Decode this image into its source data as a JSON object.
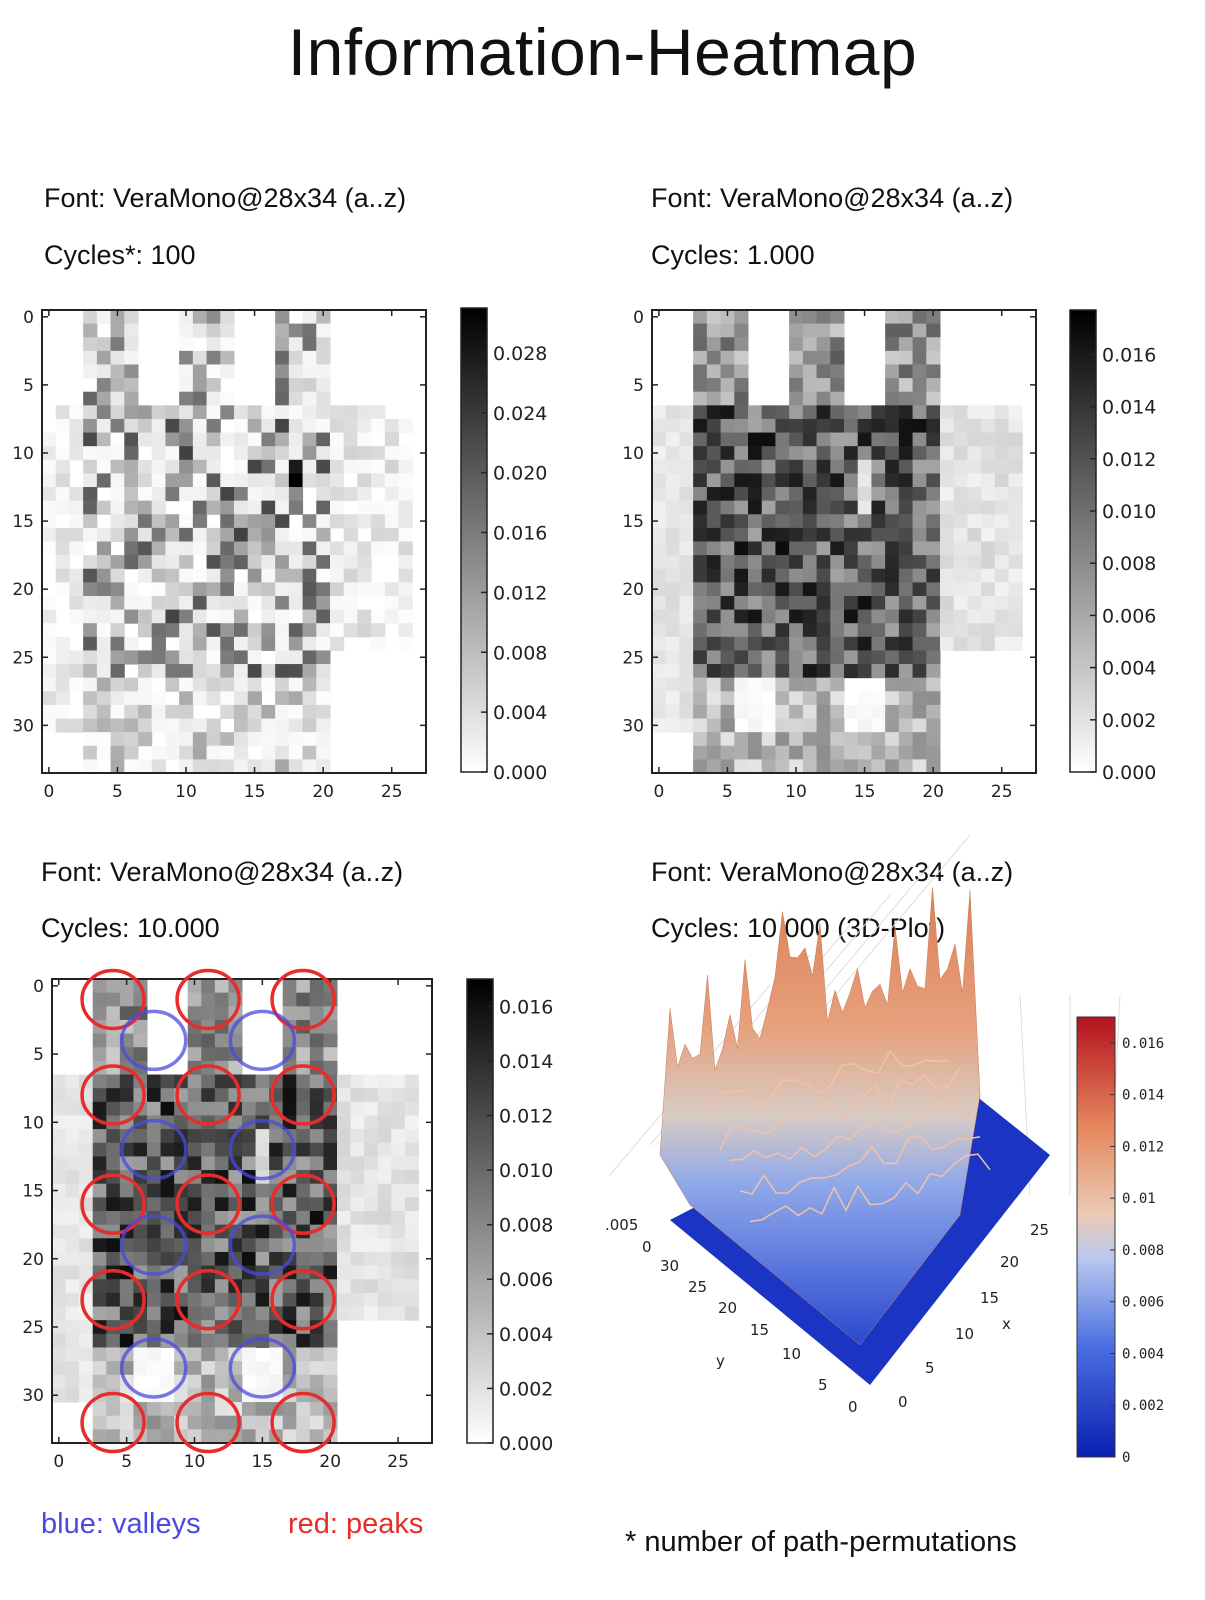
{
  "title": "Information-Heatmap",
  "panels": [
    {
      "font_label": "Font: VeraMono@28x34 (a..z)",
      "cycles_label": "Cycles*: 100"
    },
    {
      "font_label": "Font: VeraMono@28x34 (a..z)",
      "cycles_label": "Cycles: 1.000"
    },
    {
      "font_label": "Font: VeraMono@28x34 (a..z)",
      "cycles_label": "Cycles: 10.000"
    },
    {
      "font_label": "Font: VeraMono@28x34 (a..z)",
      "cycles_label": "Cycles: 10.000 (3D-Plot)"
    }
  ],
  "legend": {
    "blue": "blue: valleys",
    "red": "red: peaks",
    "blue_color": "#4a4ae0",
    "red_color": "#e82b2b"
  },
  "footnote": "* number of path-permutations",
  "chart_data": [
    {
      "type": "heatmap",
      "title": "",
      "grid": {
        "cols": 28,
        "rows": 34
      },
      "xticks": [
        "0",
        "5",
        "10",
        "15",
        "20",
        "25"
      ],
      "yticks": [
        "0",
        "5",
        "10",
        "15",
        "20",
        "25",
        "30"
      ],
      "colorbar": {
        "min": 0.0,
        "max": 0.031,
        "ticks": [
          "0.000",
          "0.004",
          "0.008",
          "0.012",
          "0.016",
          "0.020",
          "0.024",
          "0.028"
        ],
        "colormap": "gray_r"
      },
      "description_values": "sparse noisy glyph-shaped intensity, peak near x=18,y=12"
    },
    {
      "type": "heatmap",
      "title": "",
      "grid": {
        "cols": 28,
        "rows": 34
      },
      "xticks": [
        "0",
        "5",
        "10",
        "15",
        "20",
        "25"
      ],
      "yticks": [
        "0",
        "5",
        "10",
        "15",
        "20",
        "25",
        "30"
      ],
      "colorbar": {
        "min": 0.0,
        "max": 0.0177,
        "ticks": [
          "0.000",
          "0.002",
          "0.004",
          "0.006",
          "0.008",
          "0.010",
          "0.012",
          "0.014",
          "0.016"
        ],
        "colormap": "gray_r"
      }
    },
    {
      "type": "heatmap",
      "title": "",
      "grid": {
        "cols": 28,
        "rows": 34
      },
      "xticks": [
        "0",
        "5",
        "10",
        "15",
        "20",
        "25"
      ],
      "yticks": [
        "0",
        "5",
        "10",
        "15",
        "20",
        "25",
        "30"
      ],
      "colorbar": {
        "min": 0.0,
        "max": 0.017,
        "ticks": [
          "0.000",
          "0.002",
          "0.004",
          "0.006",
          "0.008",
          "0.010",
          "0.012",
          "0.014",
          "0.016"
        ],
        "colormap": "gray_r"
      },
      "peaks": [
        [
          4,
          1
        ],
        [
          11,
          1
        ],
        [
          18,
          1
        ],
        [
          4,
          8
        ],
        [
          11,
          8
        ],
        [
          18,
          8
        ],
        [
          4,
          16
        ],
        [
          11,
          16
        ],
        [
          18,
          16
        ],
        [
          4,
          23
        ],
        [
          11,
          23
        ],
        [
          18,
          23
        ],
        [
          4,
          32
        ],
        [
          11,
          32
        ],
        [
          18,
          32
        ]
      ],
      "valleys": [
        [
          7,
          4
        ],
        [
          15,
          4
        ],
        [
          7,
          12
        ],
        [
          15,
          12
        ],
        [
          7,
          19
        ],
        [
          15,
          19
        ],
        [
          7,
          28
        ],
        [
          15,
          28
        ]
      ]
    },
    {
      "type": "surface3d",
      "title": "",
      "xlabel": "x",
      "ylabel": "y",
      "xticks": [
        "0",
        "5",
        "10",
        "15",
        "20",
        "25"
      ],
      "yticks": [
        "0",
        "5",
        "10",
        "15",
        "20",
        "25",
        "30"
      ],
      "zticks": [
        "0",
        ".005"
      ],
      "colorbar": {
        "min": 0,
        "max": 0.017,
        "ticks": [
          "0",
          "0.002",
          "0.004",
          "0.006",
          "0.008",
          "0.01",
          "0.012",
          "0.014",
          "0.016"
        ],
        "colormap": "coolwarm"
      }
    }
  ]
}
